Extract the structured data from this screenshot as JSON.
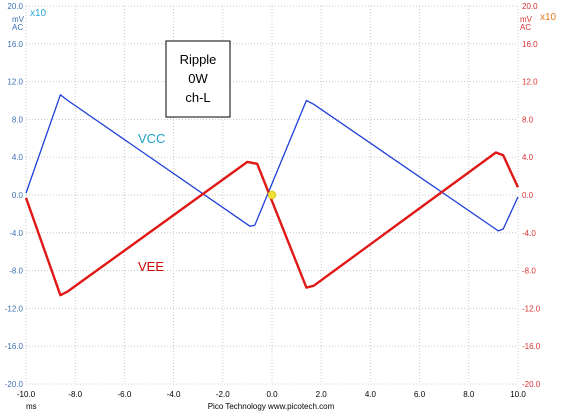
{
  "chart_data": {
    "type": "line",
    "xlabel": "ms",
    "footer": "Pico Technology   www.picotech.com",
    "x_ticks": [
      "-10.0",
      "-8.0",
      "-6.0",
      "-4.0",
      "-2.0",
      "0.0",
      "2.0",
      "4.0",
      "6.0",
      "8.0",
      "10.0"
    ],
    "y_ticks": [
      "20.0",
      "16.0",
      "12.0",
      "8.0",
      "4.0",
      "0.0",
      "-4.0",
      "-8.0",
      "-12.0",
      "-16.0",
      "-20.0"
    ],
    "xlim": [
      -10,
      10
    ],
    "ylim": [
      -20,
      20
    ],
    "grid": true,
    "left_axis": {
      "unit_line1": "mV",
      "unit_line2": "AC",
      "multiplier": "x10",
      "color": "#3a6fb0",
      "multiplier_color": "#2aa8d8"
    },
    "right_axis": {
      "unit_line1": "mV",
      "unit_line2": "AC",
      "multiplier": "x10",
      "color": "#d83030",
      "multiplier_color": "#e07820"
    },
    "box_text": [
      "Ripple",
      "0W",
      "ch-L"
    ],
    "trigger_point": {
      "x": 0.0,
      "y": 0.0,
      "color": "#f0e030"
    },
    "series": [
      {
        "name": "VCC",
        "color": "#1f3fd8",
        "label_color": "#1fa0c8",
        "x": [
          -10.0,
          -8.6,
          -8.3,
          -0.9,
          -0.7,
          1.4,
          1.7,
          9.2,
          9.4,
          10.0
        ],
        "y": [
          0.2,
          10.6,
          10.0,
          -3.3,
          -3.2,
          10.0,
          9.6,
          -3.8,
          -3.6,
          -0.2
        ]
      },
      {
        "name": "VEE",
        "color": "#e01818",
        "label_color": "#cc0000",
        "x": [
          -10.0,
          -8.6,
          -8.3,
          -1.0,
          -0.6,
          1.4,
          1.7,
          9.1,
          9.4,
          10.0
        ],
        "y": [
          -0.3,
          -10.6,
          -10.2,
          3.5,
          3.3,
          -9.8,
          -9.6,
          4.5,
          4.2,
          0.8
        ]
      }
    ]
  }
}
